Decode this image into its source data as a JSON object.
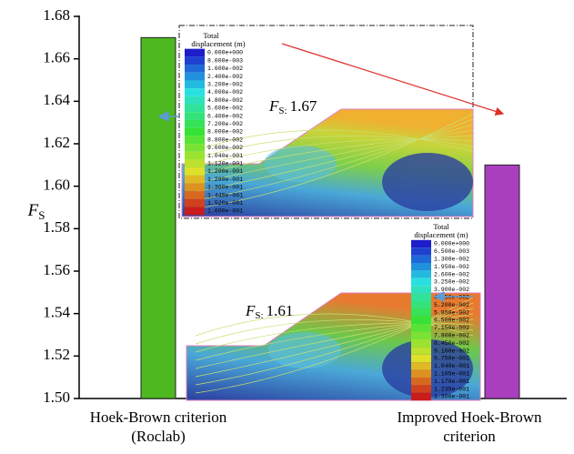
{
  "chart_data": {
    "type": "bar",
    "y_label": {
      "main": "F",
      "sub": "S"
    },
    "categories": [
      "Hoek-Brown criterion (Roclab)",
      "Improved Hoek-Brown criterion"
    ],
    "values": [
      1.67,
      1.61
    ],
    "colors": [
      "#4db81f",
      "#a93fbf"
    ],
    "ylim": [
      1.5,
      1.68
    ],
    "yticks": [
      {
        "value": 1.5,
        "label": "1.50"
      },
      1.52,
      1.54,
      1.56,
      1.58,
      {
        "value": 1.6,
        "label": "1.60"
      },
      1.62,
      1.64,
      1.66,
      1.68
    ],
    "insets": [
      {
        "annotation": {
          "symbol": "F",
          "subscript": "S:",
          "value": "1.67"
        },
        "legend_title": [
          "Total",
          "displacement (m)"
        ],
        "legend": [
          "0.000e+000",
          "8.000e-003",
          "1.600e-002",
          "2.400e-002",
          "3.200e-002",
          "4.000e-002",
          "4.800e-002",
          "5.600e-002",
          "6.400e-002",
          "7.200e-002",
          "8.000e-002",
          "8.800e-002",
          "9.600e-002",
          "1.040e-001",
          "1.120e-001",
          "1.200e-001",
          "1.280e-001",
          "1.360e-001",
          "1.440e-001",
          "1.520e-001",
          "1.600e-001"
        ]
      },
      {
        "annotation": {
          "symbol": "F",
          "subscript": "S:",
          "value": "1.61"
        },
        "legend_title": [
          "Total",
          "displacement (m)"
        ],
        "legend": [
          "0.000e+000",
          "6.500e-003",
          "1.300e-002",
          "1.950e-002",
          "2.600e-002",
          "3.250e-002",
          "3.900e-002",
          "4.550e-002",
          "5.200e-002",
          "5.850e-002",
          "6.500e-002",
          "7.150e-002",
          "7.800e-002",
          "8.450e-002",
          "9.100e-002",
          "9.750e-002",
          "1.040e-001",
          "1.105e-001",
          "1.170e-001",
          "1.235e-001",
          "1.300e-001"
        ]
      }
    ]
  }
}
